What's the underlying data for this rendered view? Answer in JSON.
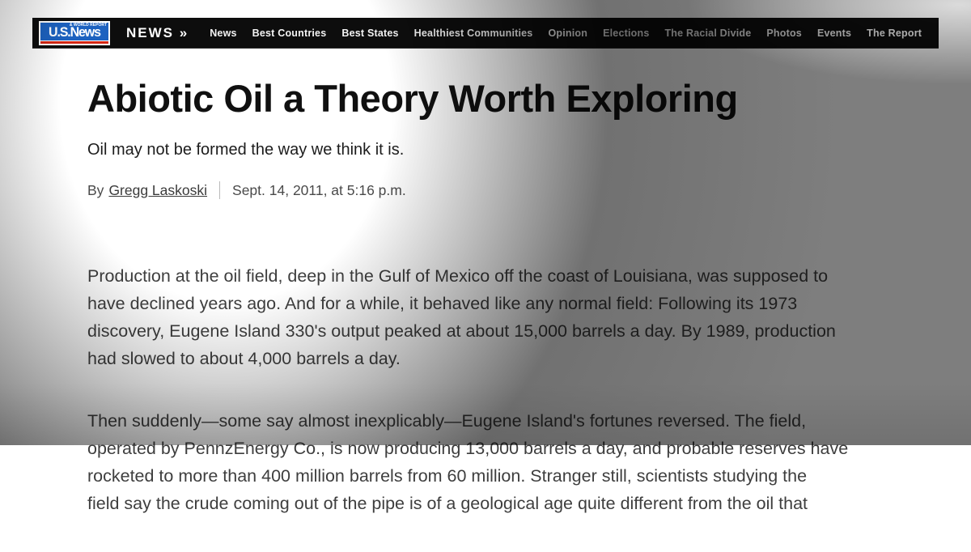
{
  "nav": {
    "logo": {
      "main": "U.S.News",
      "tagline": "& WORLD REPORT"
    },
    "section_label": "NEWS »",
    "items": [
      "News",
      "Best Countries",
      "Best States",
      "Healthiest Communities",
      "Opinion",
      "Elections",
      "The Racial Divide",
      "Photos",
      "Events",
      "The Report"
    ]
  },
  "article": {
    "title": "Abiotic Oil a Theory Worth Exploring",
    "subtitle": "Oil may not be formed the way we think it is.",
    "byline_prefix": "By",
    "author": "Gregg Laskoski",
    "date": "Sept. 14, 2011, at 5:16 p.m.",
    "paragraphs": [
      "Production at the oil field, deep in the Gulf of Mexico off the coast of Louisiana, was supposed to\nhave declined years ago. And for a while, it behaved like any normal field: Following its 1973\ndiscovery, Eugene Island 330's output peaked at about 15,000 barrels a day. By 1989, production\nhad slowed to about 4,000 barrels a day.",
      "Then suddenly—some say almost inexplicably—Eugene Island's fortunes reversed. The field,\noperated by PennzEnergy Co., is now producing 13,000 barrels a day, and probable reserves have\nrocketed to more than 400 million barrels from 60 million. Stranger still, scientists studying the\nfield say the crude coming out of the pipe is of a geological age quite different from the oil that"
    ]
  },
  "colors": {
    "nav_bg": "#0d0d0d",
    "logo_blue": "#1d62c0",
    "logo_red": "#d62612",
    "nav_dim_text": "#8f8f8f",
    "body_text": "#3e3e3e"
  }
}
